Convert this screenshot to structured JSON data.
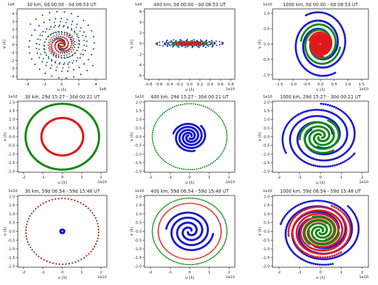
{
  "figure": {
    "colors": {
      "red": "#e0191e",
      "green": "#128a12",
      "blue": "#1a1acd",
      "axis": "#222222",
      "background": "#ffffff"
    }
  },
  "chart_data": [
    {
      "type": "scatter",
      "title": "30 km, 0d 00:00 - 0d 08:53 UT",
      "xlabel": "u (λ)",
      "ylabel": "v (λ)",
      "x_multiplier": "1e8",
      "y_multiplier": "1e8",
      "xlim": [
        -5.2,
        5.2
      ],
      "ylim": [
        -4.4,
        4.6
      ],
      "xticks": [
        -4,
        -2,
        0,
        2,
        4
      ],
      "xtick_labels": [
        "-4",
        "-2",
        "0",
        "2",
        "4"
      ],
      "yticks": [
        -4,
        -3,
        -2,
        -1,
        0,
        1,
        2,
        3,
        4
      ],
      "ytick_labels": [
        "-4",
        "-3",
        "-2",
        "-1",
        "0",
        "1",
        "2",
        "3",
        "4"
      ],
      "grid": false,
      "series": [
        {
          "color": "blue",
          "style": "dots",
          "shape": "spiral",
          "arms": 2,
          "r_min": 0.3,
          "r_max": 4.5,
          "turns": 2.4,
          "points": 150,
          "phase": 0
        },
        {
          "color": "green",
          "style": "dots",
          "shape": "spiral",
          "arms": 2,
          "r_min": 0.25,
          "r_max": 3.0,
          "turns": 2.2,
          "points": 120,
          "phase": 0.6
        },
        {
          "color": "red",
          "style": "dots",
          "shape": "spiral",
          "arms": 2,
          "r_min": 0.15,
          "r_max": 1.7,
          "turns": 2.0,
          "points": 110,
          "phase": 1.2
        }
      ]
    },
    {
      "type": "scatter",
      "title": "400 km, 0d 00:00 - 0d 08:53 UT",
      "xlabel": "u (λ)",
      "ylabel": "v (λ)",
      "x_multiplier": "1e10",
      "y_multiplier": "1e9",
      "xlim": [
        -0.88,
        0.88
      ],
      "ylim": [
        -6.7,
        6.5
      ],
      "xticks": [
        -0.8,
        -0.6,
        -0.4,
        -0.2,
        0.0,
        0.2,
        0.4,
        0.6,
        0.8
      ],
      "xtick_labels": [
        "-0.8",
        "-0.6",
        "-0.4",
        "-0.2",
        "0.0",
        "0.2",
        "0.4",
        "0.6",
        "0.8"
      ],
      "yticks": [
        -6,
        -4,
        -2,
        0,
        2,
        4,
        6
      ],
      "ytick_labels": [
        "-6",
        "-4",
        "-2",
        "0",
        "2",
        "4",
        "6"
      ],
      "grid": false,
      "series": [
        {
          "color": "blue",
          "style": "dots",
          "shape": "spiral",
          "arms": 2,
          "r_min": 0.03,
          "r_max": 0.76,
          "turns": 2.3,
          "points": 160,
          "phase": 0.3
        },
        {
          "color": "green",
          "style": "dots",
          "shape": "spiral",
          "arms": 2,
          "r_min": 0.03,
          "r_max": 0.5,
          "turns": 2.2,
          "points": 130,
          "phase": 0.9
        },
        {
          "color": "red",
          "style": "dots",
          "shape": "spiral",
          "arms": 2,
          "r_min": 0.02,
          "r_max": 0.3,
          "turns": 2.0,
          "points": 110,
          "phase": 1.6
        }
      ]
    },
    {
      "type": "scatter",
      "title": "1000 km, 0d 00:00 - 0d 08:53 UT",
      "xlabel": "u (λ)",
      "ylabel": "v (λ)",
      "x_multiplier": "1e10",
      "y_multiplier": "1e10",
      "xlim": [
        -1.75,
        1.75
      ],
      "ylim": [
        -1.15,
        1.15
      ],
      "xticks": [
        -1.5,
        -1.0,
        -0.5,
        0.0,
        0.5,
        1.0,
        1.5
      ],
      "xtick_labels": [
        "-1.5",
        "-1.0",
        "-0.5",
        "0.0",
        "0.5",
        "1.0",
        "1.5"
      ],
      "yticks": [
        -1.0,
        -0.5,
        0.0,
        0.5,
        1.0
      ],
      "ytick_labels": [
        "-1.0",
        "-0.5",
        "0.0",
        "0.5",
        "1.0"
      ],
      "grid": false,
      "series": [
        {
          "color": "blue",
          "style": "dense",
          "shape": "spiral",
          "arms": 2,
          "r_min": 0.1,
          "r_max": 1.08,
          "turns": 1.8,
          "points": 360,
          "phase": 0.2
        },
        {
          "color": "green",
          "style": "dense",
          "shape": "spiral",
          "arms": 2,
          "r_min": 0.08,
          "r_max": 0.72,
          "turns": 1.8,
          "points": 320,
          "phase": 1.1
        },
        {
          "color": "red",
          "style": "dense",
          "shape": "spiral",
          "arms": 3,
          "r_min": 0.05,
          "r_max": 0.42,
          "turns": 1.8,
          "points": 300,
          "phase": 2.0
        }
      ]
    },
    {
      "type": "scatter",
      "title": "30 km, 29d 15:27 - 30d 00:21 UT",
      "xlabel": "u (λ)",
      "ylabel": "v (λ)",
      "x_multiplier": "1e10",
      "y_multiplier": "1e10",
      "xlim": [
        -2.3,
        2.3
      ],
      "ylim": [
        -2.05,
        2.05
      ],
      "xticks": [
        -2,
        -1,
        0,
        1,
        2
      ],
      "xtick_labels": [
        "-2",
        "-1",
        "0",
        "1",
        "2"
      ],
      "yticks": [
        -2.0,
        -1.5,
        -1.0,
        -0.5,
        0.0,
        0.5,
        1.0,
        1.5,
        2.0
      ],
      "ytick_labels": [
        "-2.0",
        "-1.5",
        "-1.0",
        "-0.5",
        "0.0",
        "0.5",
        "1.0",
        "1.5",
        "2.0"
      ],
      "grid": false,
      "series": [
        {
          "color": "green",
          "style": "dense",
          "shape": "ring",
          "r": 1.9,
          "points": 360,
          "phase": 0
        },
        {
          "color": "red",
          "style": "dense",
          "shape": "ring",
          "r": 1.08,
          "points": 300,
          "phase": 0
        }
      ]
    },
    {
      "type": "scatter",
      "title": "400 km, 29d 15:27 - 30d 00:21 UT",
      "xlabel": "u (λ)",
      "ylabel": "v (λ)",
      "x_multiplier": "1e10",
      "y_multiplier": "1e10",
      "xlim": [
        -2.3,
        2.3
      ],
      "ylim": [
        -2.05,
        2.05
      ],
      "xticks": [
        -2,
        -1,
        0,
        1,
        2
      ],
      "xtick_labels": [
        "-2",
        "-1",
        "0",
        "1",
        "2"
      ],
      "yticks": [
        -2.0,
        -1.5,
        -1.0,
        -0.5,
        0.0,
        0.5,
        1.0,
        1.5,
        2.0
      ],
      "ytick_labels": [
        "-2.0",
        "-1.5",
        "-1.0",
        "-0.5",
        "0.0",
        "0.5",
        "1.0",
        "1.5",
        "2.0"
      ],
      "grid": false,
      "series": [
        {
          "color": "green",
          "style": "dots",
          "shape": "ring",
          "r": 1.9,
          "points": 110,
          "phase": 0.1
        },
        {
          "color": "blue",
          "style": "dense",
          "shape": "spiral",
          "arms": 3,
          "r_min": 0.1,
          "r_max": 0.85,
          "turns": 1.4,
          "points": 330,
          "phase": 0.4
        }
      ]
    },
    {
      "type": "scatter",
      "title": "1000 km, 29d 15:27 - 30d 00:21 UT",
      "xlabel": "u (λ)",
      "ylabel": "v (λ)",
      "x_multiplier": "1e10",
      "y_multiplier": "1e10",
      "xlim": [
        -2.3,
        2.3
      ],
      "ylim": [
        -2.05,
        2.05
      ],
      "xticks": [
        -2,
        -1,
        0,
        1,
        2
      ],
      "xtick_labels": [
        "-2",
        "-1",
        "0",
        "1",
        "2"
      ],
      "yticks": [
        -2.0,
        -1.5,
        -1.0,
        -0.5,
        0.0,
        0.5,
        1.0,
        1.5,
        2.0
      ],
      "ytick_labels": [
        "-2.0",
        "-1.5",
        "-1.0",
        "-0.5",
        "0.0",
        "0.5",
        "1.0",
        "1.5",
        "2.0"
      ],
      "grid": false,
      "series": [
        {
          "color": "blue",
          "style": "dense",
          "shape": "spiral",
          "arms": 3,
          "r_min": 0.6,
          "r_max": 1.9,
          "turns": 1.2,
          "points": 390,
          "phase": 0.3
        },
        {
          "color": "green",
          "style": "dense",
          "shape": "spiral",
          "arms": 3,
          "r_min": 0.1,
          "r_max": 1.0,
          "turns": 1.3,
          "points": 330,
          "phase": 1.4
        }
      ]
    },
    {
      "type": "scatter",
      "title": "30 km, 59d 06:54 - 59d 15:48 UT",
      "xlabel": "u (λ)",
      "ylabel": "v (λ)",
      "x_multiplier": "1e10",
      "y_multiplier": "1e10",
      "xlim": [
        -2.3,
        2.3
      ],
      "ylim": [
        -2.05,
        2.05
      ],
      "xticks": [
        -2,
        -1,
        0,
        1,
        2
      ],
      "xtick_labels": [
        "-2",
        "-1",
        "0",
        "1",
        "2"
      ],
      "yticks": [
        -2.0,
        -1.5,
        -1.0,
        -0.5,
        0.0,
        0.5,
        1.0,
        1.5,
        2.0
      ],
      "ytick_labels": [
        "-2.0",
        "-1.5",
        "-1.0",
        "-0.5",
        "0.0",
        "0.5",
        "1.0",
        "1.5",
        "2.0"
      ],
      "grid": false,
      "series": [
        {
          "color": "green",
          "style": "dots",
          "shape": "ring",
          "r": 1.88,
          "points": 70,
          "phase": 0.05
        },
        {
          "color": "red",
          "style": "dots",
          "shape": "ring",
          "r": 1.88,
          "points": 70,
          "phase": 0.6
        },
        {
          "color": "blue",
          "style": "dense",
          "shape": "ring",
          "r": 0.1,
          "points": 60,
          "phase": 0
        }
      ]
    },
    {
      "type": "scatter",
      "title": "400 km, 59d 06:54 - 59d 15:48 UT",
      "xlabel": "u (λ)",
      "ylabel": "v (λ)",
      "x_multiplier": "1e10",
      "y_multiplier": "1e10",
      "xlim": [
        -2.3,
        2.3
      ],
      "ylim": [
        -2.05,
        2.05
      ],
      "xticks": [
        -2,
        -1,
        0,
        1,
        2
      ],
      "xtick_labels": [
        "-2",
        "-1",
        "0",
        "1",
        "2"
      ],
      "yticks": [
        -2.0,
        -1.5,
        -1.0,
        -0.5,
        0.0,
        0.5,
        1.0,
        1.5,
        2.0
      ],
      "ytick_labels": [
        "-2.0",
        "-1.5",
        "-1.0",
        "-0.5",
        "0.0",
        "0.5",
        "1.0",
        "1.5",
        "2.0"
      ],
      "grid": false,
      "series": [
        {
          "color": "green",
          "style": "dots",
          "shape": "ring",
          "r": 1.9,
          "points": 130,
          "phase": 0.1
        },
        {
          "color": "red",
          "style": "dots",
          "shape": "ring",
          "r": 1.6,
          "points": 120,
          "phase": 0.3
        },
        {
          "color": "blue",
          "style": "dense",
          "shape": "spiral",
          "arms": 2,
          "r_min": 0.1,
          "r_max": 1.2,
          "turns": 1.9,
          "points": 360,
          "phase": 0.5
        }
      ]
    },
    {
      "type": "scatter",
      "title": "1000 km, 59d 06:54 - 59d 15:48 UT",
      "xlabel": "u (λ)",
      "ylabel": "v (λ)",
      "x_multiplier": "1e10",
      "y_multiplier": "1e10",
      "xlim": [
        -2.3,
        2.3
      ],
      "ylim": [
        -2.05,
        2.05
      ],
      "xticks": [
        -2,
        -1,
        0,
        1,
        2
      ],
      "xtick_labels": [
        "-2",
        "-1",
        "0",
        "1",
        "2"
      ],
      "yticks": [
        -2.0,
        -1.5,
        -1.0,
        -0.5,
        0.0,
        0.5,
        1.0,
        1.5,
        2.0
      ],
      "ytick_labels": [
        "-2.0",
        "-1.5",
        "-1.0",
        "-0.5",
        "0.0",
        "0.5",
        "1.0",
        "1.5",
        "2.0"
      ],
      "grid": false,
      "series": [
        {
          "color": "blue",
          "style": "dense",
          "shape": "spiral",
          "arms": 3,
          "r_min": 0.9,
          "r_max": 1.95,
          "turns": 1.1,
          "points": 390,
          "phase": 0.2
        },
        {
          "color": "red",
          "style": "dense",
          "shape": "spiral",
          "arms": 3,
          "r_min": 0.55,
          "r_max": 1.55,
          "turns": 1.7,
          "points": 420,
          "phase": 1.0
        },
        {
          "color": "green",
          "style": "dense",
          "shape": "spiral",
          "arms": 3,
          "r_min": 0.1,
          "r_max": 0.9,
          "turns": 1.3,
          "points": 300,
          "phase": 2.2
        }
      ]
    }
  ]
}
